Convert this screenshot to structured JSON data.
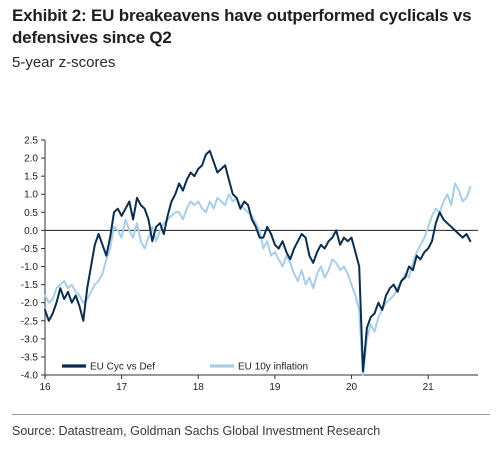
{
  "exhibit": {
    "title": "Exhibit 2: EU breakeavens have outperformed cyclicals vs defensives since Q2",
    "subtitle": "5-year z-scores",
    "source": "Source: Datastream, Goldman Sachs Global Investment Research"
  },
  "chart_data": {
    "type": "line",
    "title": "",
    "xlabel": "",
    "ylabel": "",
    "xlim": [
      2016.0,
      2021.65
    ],
    "ylim": [
      -4.0,
      2.5
    ],
    "x_ticks": [
      "16",
      "17",
      "18",
      "19",
      "20",
      "21"
    ],
    "x_tick_values": [
      2016,
      2017,
      2018,
      2019,
      2020,
      2021
    ],
    "y_ticks": [
      "2.5",
      "2.0",
      "1.5",
      "1.0",
      "0.5",
      "0.0",
      "-0.5",
      "-1.0",
      "-1.5",
      "-2.0",
      "-2.5",
      "-3.0",
      "-3.5",
      "-4.0"
    ],
    "y_tick_values": [
      2.5,
      2.0,
      1.5,
      1.0,
      0.5,
      0.0,
      -0.5,
      -1.0,
      -1.5,
      -2.0,
      -2.5,
      -3.0,
      -3.5,
      -4.0
    ],
    "grid": false,
    "zero_line": true,
    "legend_position": "bottom-left",
    "series": [
      {
        "name": "EU Cyc vs Def",
        "color": "#0b2d4f",
        "x": [
          2016.0,
          2016.05,
          2016.1,
          2016.15,
          2016.2,
          2016.25,
          2016.3,
          2016.35,
          2016.4,
          2016.45,
          2016.5,
          2016.55,
          2016.6,
          2016.65,
          2016.7,
          2016.75,
          2016.8,
          2016.85,
          2016.9,
          2016.95,
          2017.0,
          2017.05,
          2017.1,
          2017.15,
          2017.2,
          2017.25,
          2017.3,
          2017.35,
          2017.4,
          2017.45,
          2017.5,
          2017.55,
          2017.6,
          2017.65,
          2017.7,
          2017.75,
          2017.8,
          2017.85,
          2017.9,
          2017.95,
          2018.0,
          2018.05,
          2018.1,
          2018.15,
          2018.2,
          2018.25,
          2018.3,
          2018.35,
          2018.4,
          2018.45,
          2018.5,
          2018.55,
          2018.6,
          2018.65,
          2018.7,
          2018.75,
          2018.8,
          2018.85,
          2018.9,
          2018.95,
          2019.0,
          2019.05,
          2019.1,
          2019.15,
          2019.2,
          2019.25,
          2019.3,
          2019.35,
          2019.4,
          2019.45,
          2019.5,
          2019.55,
          2019.6,
          2019.65,
          2019.7,
          2019.75,
          2019.8,
          2019.85,
          2019.9,
          2019.95,
          2020.0,
          2020.05,
          2020.1,
          2020.15,
          2020.2,
          2020.25,
          2020.3,
          2020.35,
          2020.4,
          2020.45,
          2020.5,
          2020.55,
          2020.6,
          2020.65,
          2020.7,
          2020.75,
          2020.8,
          2020.85,
          2020.9,
          2020.95,
          2021.0,
          2021.05,
          2021.1,
          2021.15,
          2021.2,
          2021.25,
          2021.3,
          2021.35,
          2021.4,
          2021.45,
          2021.5,
          2021.55
        ],
        "y": [
          -2.2,
          -2.5,
          -2.3,
          -2.0,
          -1.6,
          -1.9,
          -1.7,
          -2.0,
          -1.8,
          -2.1,
          -2.5,
          -1.6,
          -1.0,
          -0.4,
          -0.1,
          -0.4,
          -0.7,
          -0.2,
          0.5,
          0.6,
          0.4,
          0.6,
          0.8,
          0.3,
          0.9,
          0.7,
          0.6,
          0.3,
          -0.3,
          0.1,
          0.2,
          -0.1,
          0.4,
          0.8,
          1.0,
          1.3,
          1.1,
          1.4,
          1.6,
          1.5,
          1.7,
          1.8,
          2.1,
          2.2,
          1.9,
          1.6,
          1.7,
          1.8,
          1.4,
          1.0,
          0.9,
          0.6,
          0.8,
          0.7,
          0.3,
          0.1,
          -0.2,
          -0.2,
          0.1,
          -0.1,
          -0.4,
          -0.5,
          -0.3,
          -0.6,
          -0.8,
          -0.5,
          -0.3,
          -0.1,
          -0.2,
          -0.7,
          -0.9,
          -0.6,
          -0.4,
          -0.5,
          -0.3,
          -0.2,
          0.0,
          -0.4,
          -0.2,
          -0.3,
          -0.2,
          -0.6,
          -1.0,
          -3.9,
          -2.7,
          -2.4,
          -2.3,
          -2.0,
          -2.2,
          -1.8,
          -1.6,
          -1.5,
          -1.7,
          -1.4,
          -1.3,
          -1.0,
          -1.1,
          -0.7,
          -0.8,
          -0.6,
          -0.5,
          -0.3,
          0.2,
          0.5,
          0.3,
          0.2,
          0.1,
          0.0,
          -0.1,
          -0.2,
          -0.1,
          -0.3
        ]
      },
      {
        "name": "EU 10y inflation",
        "color": "#a9cfe8",
        "x": [
          2016.0,
          2016.05,
          2016.1,
          2016.15,
          2016.2,
          2016.25,
          2016.3,
          2016.35,
          2016.4,
          2016.45,
          2016.5,
          2016.55,
          2016.6,
          2016.65,
          2016.7,
          2016.75,
          2016.8,
          2016.85,
          2016.9,
          2016.95,
          2017.0,
          2017.05,
          2017.1,
          2017.15,
          2017.2,
          2017.25,
          2017.3,
          2017.35,
          2017.4,
          2017.45,
          2017.5,
          2017.55,
          2017.6,
          2017.65,
          2017.7,
          2017.75,
          2017.8,
          2017.85,
          2017.9,
          2017.95,
          2018.0,
          2018.05,
          2018.1,
          2018.15,
          2018.2,
          2018.25,
          2018.3,
          2018.35,
          2018.4,
          2018.45,
          2018.5,
          2018.55,
          2018.6,
          2018.65,
          2018.7,
          2018.75,
          2018.8,
          2018.85,
          2018.9,
          2018.95,
          2019.0,
          2019.05,
          2019.1,
          2019.15,
          2019.2,
          2019.25,
          2019.3,
          2019.35,
          2019.4,
          2019.45,
          2019.5,
          2019.55,
          2019.6,
          2019.65,
          2019.7,
          2019.75,
          2019.8,
          2019.85,
          2019.9,
          2019.95,
          2020.0,
          2020.05,
          2020.1,
          2020.15,
          2020.2,
          2020.25,
          2020.3,
          2020.35,
          2020.4,
          2020.45,
          2020.5,
          2020.55,
          2020.6,
          2020.65,
          2020.7,
          2020.75,
          2020.8,
          2020.85,
          2020.9,
          2020.95,
          2021.0,
          2021.05,
          2021.1,
          2021.15,
          2021.2,
          2021.25,
          2021.3,
          2021.35,
          2021.4,
          2021.45,
          2021.5,
          2021.55
        ],
        "y": [
          -1.8,
          -2.0,
          -1.9,
          -1.6,
          -1.5,
          -1.4,
          -1.6,
          -1.5,
          -1.7,
          -1.8,
          -2.0,
          -1.9,
          -1.7,
          -1.5,
          -1.4,
          -1.2,
          -0.8,
          -0.5,
          0.1,
          0.0,
          -0.2,
          0.3,
          0.0,
          -0.2,
          0.2,
          -0.3,
          -0.5,
          -0.2,
          0.1,
          -0.3,
          0.0,
          0.2,
          0.3,
          0.4,
          0.5,
          0.5,
          0.3,
          0.6,
          0.8,
          0.7,
          0.8,
          0.6,
          0.5,
          0.8,
          0.6,
          0.9,
          0.8,
          0.7,
          1.0,
          0.8,
          0.9,
          0.7,
          0.6,
          0.5,
          0.4,
          0.2,
          0.0,
          -0.5,
          -0.3,
          -0.7,
          -0.6,
          -0.8,
          -1.0,
          -0.7,
          -0.9,
          -1.2,
          -1.4,
          -1.1,
          -1.5,
          -1.3,
          -1.6,
          -1.2,
          -1.0,
          -1.3,
          -1.1,
          -0.8,
          -0.9,
          -1.1,
          -1.0,
          -1.2,
          -1.5,
          -1.8,
          -2.2,
          -4.0,
          -3.0,
          -2.6,
          -2.8,
          -2.4,
          -2.2,
          -2.0,
          -1.9,
          -1.8,
          -1.6,
          -1.4,
          -1.2,
          -1.3,
          -0.9,
          -0.6,
          -0.4,
          -0.2,
          0.1,
          0.4,
          0.6,
          0.5,
          0.8,
          1.0,
          0.7,
          1.3,
          1.1,
          0.8,
          0.9,
          1.2
        ]
      }
    ]
  }
}
